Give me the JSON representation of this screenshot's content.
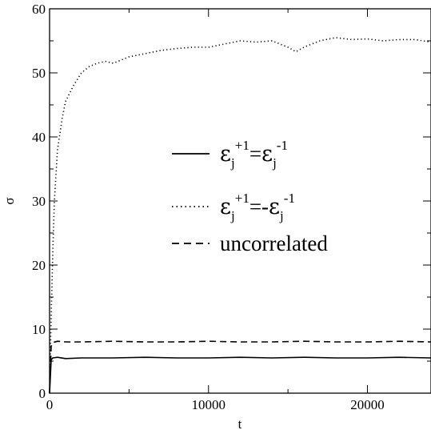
{
  "chart_data": {
    "type": "line",
    "title": "",
    "xlabel": "t",
    "ylabel": "σ",
    "xlim": [
      0,
      24000
    ],
    "ylim": [
      0,
      60
    ],
    "xticks": [
      0,
      10000,
      20000
    ],
    "yticks": [
      0,
      10,
      20,
      30,
      40,
      50,
      60
    ],
    "grid": false,
    "legend": {
      "placement": "center-right",
      "entries": [
        {
          "style": "solid",
          "label": "ε_j^{+1}=ε_j^{-1}"
        },
        {
          "style": "dotted",
          "label": "ε_j^{+1}=-ε_j^{-1}"
        },
        {
          "style": "dashed",
          "label": "uncorrelated"
        }
      ]
    },
    "series": [
      {
        "style": "solid",
        "x": [
          0,
          100,
          200,
          500,
          1000,
          2000,
          4000,
          6000,
          8000,
          10000,
          12000,
          14000,
          16000,
          18000,
          20000,
          22000,
          24000
        ],
        "y": [
          0,
          5.2,
          5.5,
          5.6,
          5.4,
          5.5,
          5.5,
          5.6,
          5.5,
          5.5,
          5.6,
          5.5,
          5.6,
          5.5,
          5.5,
          5.6,
          5.5
        ]
      },
      {
        "style": "dotted",
        "x": [
          0,
          100,
          200,
          300,
          500,
          800,
          1000,
          1500,
          2000,
          2500,
          3000,
          3500,
          4000,
          5000,
          6000,
          7000,
          8000,
          9000,
          10000,
          11000,
          12000,
          13000,
          14000,
          15000,
          15500,
          16000,
          17000,
          18000,
          19000,
          20000,
          21000,
          22000,
          23000,
          24000
        ],
        "y": [
          0,
          12,
          22,
          30,
          38,
          43,
          45.5,
          48,
          50,
          51,
          51.5,
          51.8,
          51.5,
          52.5,
          53,
          53.5,
          53.8,
          54,
          54,
          54.5,
          55,
          54.8,
          55,
          54,
          53.3,
          54,
          55,
          55.5,
          55.2,
          55.3,
          55,
          55.2,
          55.2,
          54.8
        ]
      },
      {
        "style": "dashed",
        "x": [
          0,
          100,
          200,
          500,
          1000,
          2000,
          4000,
          6000,
          8000,
          10000,
          12000,
          14000,
          16000,
          18000,
          20000,
          22000,
          24000
        ],
        "y": [
          0,
          7.3,
          7.9,
          8.1,
          8.0,
          8.0,
          8.1,
          8.0,
          8.0,
          8.1,
          8.0,
          8.0,
          8.1,
          8.0,
          8.0,
          8.1,
          8.0
        ]
      }
    ]
  }
}
